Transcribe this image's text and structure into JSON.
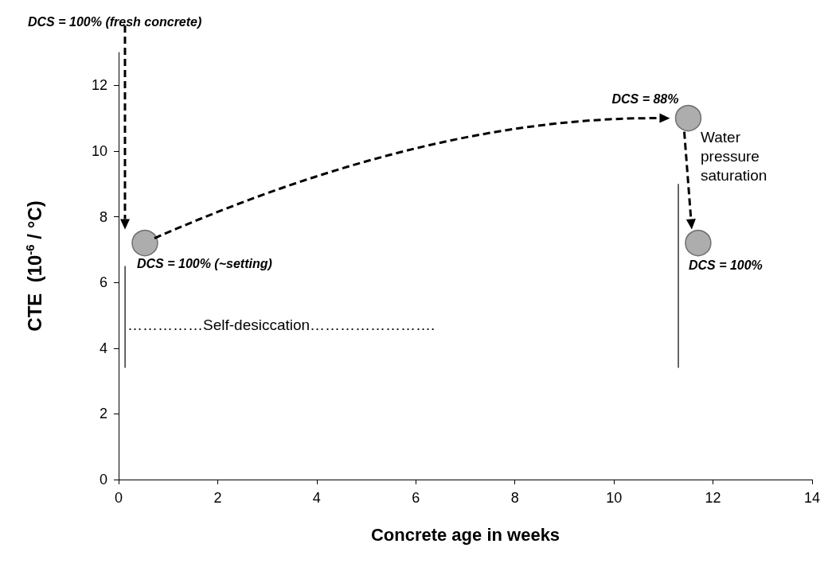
{
  "chart_data": {
    "type": "line",
    "xlabel": "Concrete age in weeks",
    "ylabel": "CTE  (10$^{-6}$ / °C)",
    "xlim": [
      0,
      14
    ],
    "xticks": [
      0,
      2,
      4,
      6,
      8,
      10,
      12,
      14
    ],
    "ylim": [
      0,
      13
    ],
    "yticks": [
      0,
      2,
      4,
      6,
      8,
      10,
      12
    ],
    "grid": false,
    "series": [
      {
        "color": "#000000",
        "line_style": "solid",
        "marker": "none",
        "x": [
          0.13,
          0.13
        ],
        "values": [
          6.5,
          3.4
        ]
      },
      {
        "color": "#000000",
        "line_style": "solid",
        "marker": "none",
        "x": [
          11.3,
          11.3
        ],
        "values": [
          9,
          3.4
        ]
      },
      {
        "type": "scatter",
        "color": "#999999",
        "marker": "circle",
        "x": [
          0.53,
          11.5,
          11.7
        ],
        "values": [
          7.2,
          11,
          7.2
        ]
      }
    ],
    "annotations": [
      "DCS = 100% (fresh concrete)",
      {
        "text": "DCS = 88%",
        "x": 11.5,
        "y": 11
      },
      {
        "text": "DCS = 100% (~setting)",
        "x": 0.53,
        "y": 7.2
      },
      {
        "text": "DCS = 100%",
        "x": 11.7,
        "y": 7.2
      },
      "Water pressure saturation",
      "……………Self-desiccation……………………."
    ]
  }
}
